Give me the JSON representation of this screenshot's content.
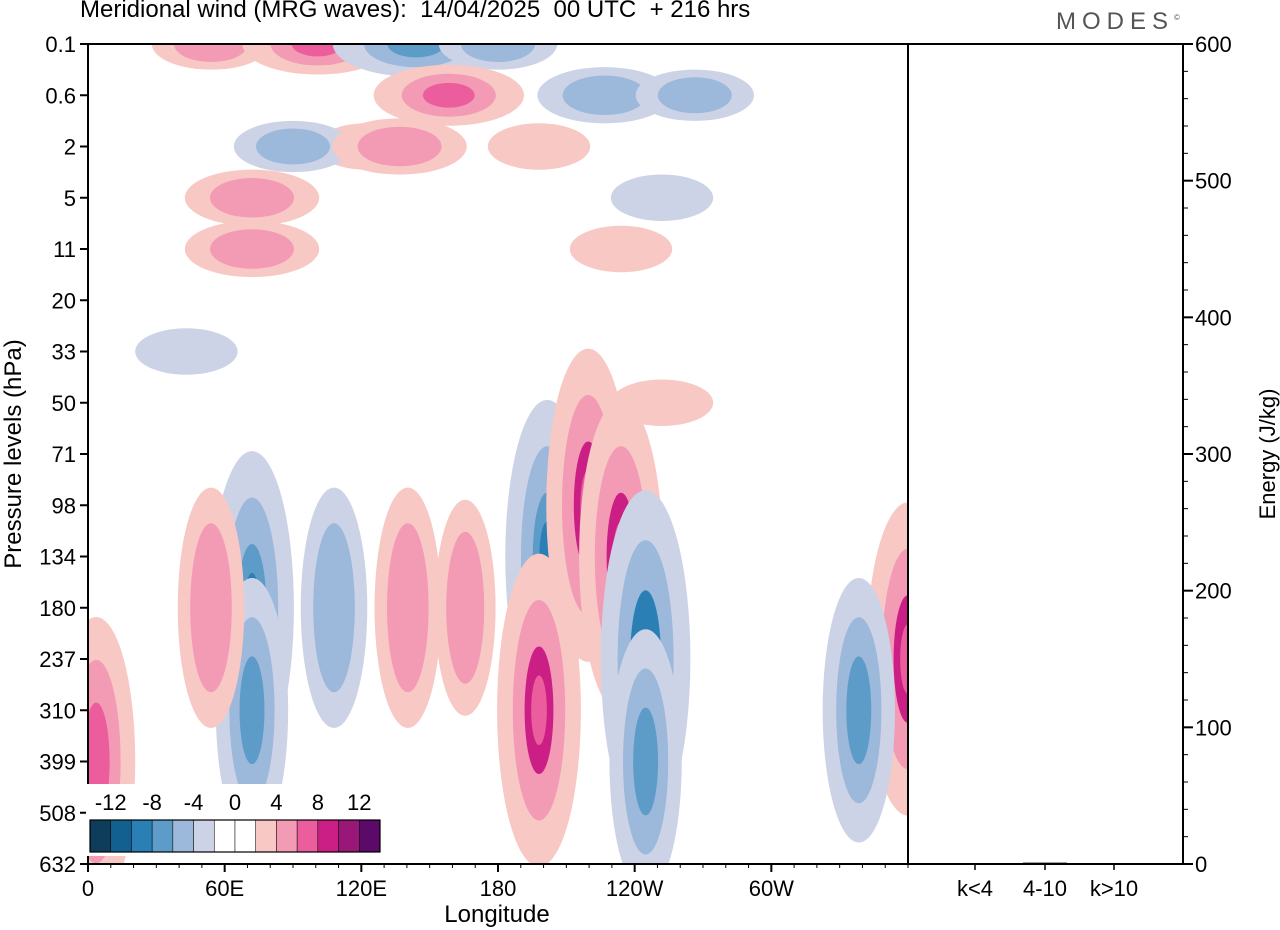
{
  "header": {
    "title": "Meridional wind (MRG waves):  14/04/2025  00 UTC  + 216 hrs",
    "logo": "MODES"
  },
  "chart_data": [
    {
      "type": "heatmap",
      "xlabel": "Longitude",
      "ylabel": "Pressure levels (hPa)",
      "x_ticks": [
        "0",
        "60E",
        "120E",
        "180",
        "120W",
        "60W"
      ],
      "y_ticks": [
        "0.1",
        "0.6",
        "2",
        "5",
        "11",
        "20",
        "33",
        "50",
        "71",
        "98",
        "134",
        "180",
        "237",
        "310",
        "399",
        "508",
        "632"
      ],
      "colorbar": {
        "labels": [
          "-12",
          "-8",
          "-4",
          "0",
          "4",
          "8",
          "12"
        ],
        "colors": [
          "#0e3d5b",
          "#12608f",
          "#2a7fb4",
          "#5d9bc8",
          "#9cb8da",
          "#cdd3e6",
          "#ffffff",
          "#ffffff",
          "#f8c8c4",
          "#f39ab5",
          "#eb5d9c",
          "#cc1f86",
          "#981777",
          "#5c0a6a"
        ]
      },
      "features": [
        {
          "sign": "positive",
          "lon": 15,
          "level": "0.1",
          "value": 5
        },
        {
          "sign": "positive",
          "lon": 28,
          "level": "0.1",
          "value": 7
        },
        {
          "sign": "negative",
          "lon": 40,
          "level": "0.1",
          "value": -8
        },
        {
          "sign": "negative",
          "lon": 50,
          "level": "0.1",
          "value": -5
        },
        {
          "sign": "positive",
          "lon": 44,
          "level": "0.6",
          "value": 7
        },
        {
          "sign": "positive",
          "lon": 34,
          "level": "2",
          "value": 4
        },
        {
          "sign": "negative",
          "lon": 25,
          "level": "2",
          "value": -5
        },
        {
          "sign": "positive",
          "lon": 38,
          "level": "2",
          "value": 6
        },
        {
          "sign": "negative",
          "lon": 63,
          "level": "0.6",
          "value": -6
        },
        {
          "sign": "negative",
          "lon": 74,
          "level": "0.6",
          "value": -5
        },
        {
          "sign": "positive",
          "lon": 55,
          "level": "2",
          "value": 4
        },
        {
          "sign": "positive",
          "lon": 20,
          "level": "5",
          "value": 6
        },
        {
          "sign": "positive",
          "lon": 20,
          "level": "11",
          "value": 6
        },
        {
          "sign": "negative",
          "lon": 70,
          "level": "5",
          "value": -4
        },
        {
          "sign": "positive",
          "lon": 65,
          "level": "11",
          "value": 4
        },
        {
          "sign": "negative",
          "lon": 12,
          "level": "33",
          "value": -4
        },
        {
          "sign": "positive",
          "lon": 70,
          "level": "50",
          "value": 4
        },
        {
          "sign": "negative",
          "lon": 20,
          "level": "180",
          "value": -9
        },
        {
          "sign": "negative",
          "lon": 20,
          "level": "310",
          "value": -7
        },
        {
          "sign": "positive",
          "lon": 15,
          "level": "180",
          "value": 6
        },
        {
          "sign": "negative",
          "lon": 30,
          "level": "180",
          "value": -6
        },
        {
          "sign": "positive",
          "lon": 39,
          "level": "180",
          "value": 6
        },
        {
          "sign": "positive",
          "lon": 46,
          "level": "180",
          "value": 5
        },
        {
          "sign": "negative",
          "lon": 56,
          "level": "134",
          "value": -9
        },
        {
          "sign": "positive",
          "lon": 61,
          "level": "98",
          "value": 9
        },
        {
          "sign": "positive",
          "lon": 65,
          "level": "134",
          "value": 9
        },
        {
          "sign": "positive",
          "lon": 55,
          "level": "310",
          "value": 9
        },
        {
          "sign": "negative",
          "lon": 68,
          "level": "237",
          "value": -10
        },
        {
          "sign": "negative",
          "lon": 68,
          "level": "399",
          "value": -7
        },
        {
          "sign": "positive",
          "lon": 100,
          "level": "237",
          "value": 9
        },
        {
          "sign": "positive",
          "lon": 1,
          "level": "399",
          "value": 8
        },
        {
          "sign": "negative",
          "lon": 94,
          "level": "310",
          "value": -7
        }
      ]
    },
    {
      "type": "bar",
      "ylabel": "Energy (J/kg)",
      "categories": [
        "k<4",
        "4-10",
        "k>10"
      ],
      "values": [
        0,
        1,
        0
      ],
      "ylim": [
        0,
        600
      ],
      "y_ticks": [
        "0",
        "100",
        "200",
        "300",
        "400",
        "500",
        "600"
      ]
    }
  ]
}
